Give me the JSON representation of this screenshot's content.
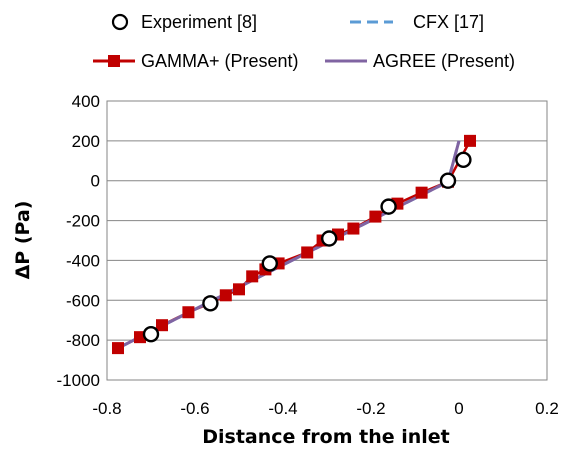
{
  "chart_data": {
    "type": "line",
    "xlabel": "Distance from the  inlet",
    "ylabel": "ΔP (Pa)",
    "xlim": [
      -0.8,
      0.2
    ],
    "ylim": [
      -1000,
      400
    ],
    "x_ticks": [
      "-0.8",
      "-0.6",
      "-0.4",
      "-0.2",
      "0",
      "0.2"
    ],
    "y_ticks": [
      "400",
      "200",
      "0",
      "-200",
      "-400",
      "-600",
      "-800",
      "-1000"
    ],
    "grid": "horizontal",
    "legend_position": "top",
    "series": [
      {
        "name": "Experiment [8]",
        "style": "open-circle-marker",
        "color": "#000000",
        "x": [
          -0.7,
          -0.565,
          -0.43,
          -0.295,
          -0.16,
          -0.025,
          0.01
        ],
        "y": [
          -770,
          -615,
          -415,
          -290,
          -130,
          0,
          105
        ]
      },
      {
        "name": "CFX [17]",
        "style": "dashed-line",
        "color": "#5b9bd5",
        "x": [
          -0.775,
          -0.025,
          0.0
        ],
        "y": [
          -840,
          -5,
          200
        ]
      },
      {
        "name": "GAMMA+ (Present)",
        "style": "line-with-square-markers",
        "color": "#c00000",
        "x": [
          -0.775,
          -0.725,
          -0.675,
          -0.615,
          -0.565,
          -0.53,
          -0.5,
          -0.47,
          -0.44,
          -0.41,
          -0.345,
          -0.31,
          -0.275,
          -0.24,
          -0.19,
          -0.14,
          -0.085,
          -0.025,
          0.025
        ],
        "y": [
          -840,
          -785,
          -725,
          -660,
          -615,
          -575,
          -545,
          -480,
          -445,
          -415,
          -360,
          -300,
          -270,
          -240,
          -180,
          -115,
          -60,
          -5,
          200
        ]
      },
      {
        "name": "AGREE (Present)",
        "style": "solid-line",
        "color": "#8064a2",
        "x": [
          -0.775,
          -0.025,
          0.0
        ],
        "y": [
          -840,
          -5,
          200
        ]
      }
    ]
  }
}
